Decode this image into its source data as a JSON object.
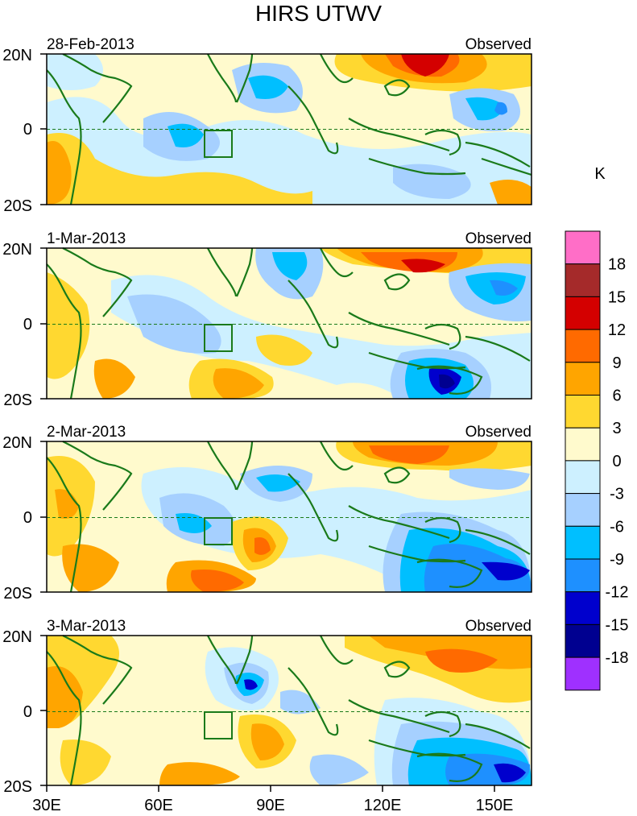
{
  "title": "HIRS UTWV",
  "unit": "K",
  "panels": [
    {
      "date": "28-Feb-2013",
      "tag": "Observed"
    },
    {
      "date": "1-Mar-2013",
      "tag": "Observed"
    },
    {
      "date": "2-Mar-2013",
      "tag": "Observed"
    },
    {
      "date": "3-Mar-2013",
      "tag": "Observed"
    }
  ],
  "lat_ticks": [
    "20N",
    "0",
    "20S"
  ],
  "lon_ticks": [
    "30E",
    "60E",
    "90E",
    "120E",
    "150E"
  ],
  "colorbar": {
    "labels": [
      "18",
      "15",
      "12",
      "9",
      "6",
      "3",
      "0",
      "-3",
      "-6",
      "-9",
      "-12",
      "-15",
      "-18"
    ],
    "colors": [
      "#ff6ec7",
      "#a52a2a",
      "#d40000",
      "#ff6a00",
      "#ffa500",
      "#ffd830",
      "#fffacd",
      "#cdf0ff",
      "#a6d0ff",
      "#00bfff",
      "#1e90ff",
      "#0000cd",
      "#000090",
      "#9f30ff"
    ]
  },
  "colors": {
    "coastline": "#1a7a1a",
    "box": "#1a7a1a",
    "equator": "#1a7a1a"
  }
}
